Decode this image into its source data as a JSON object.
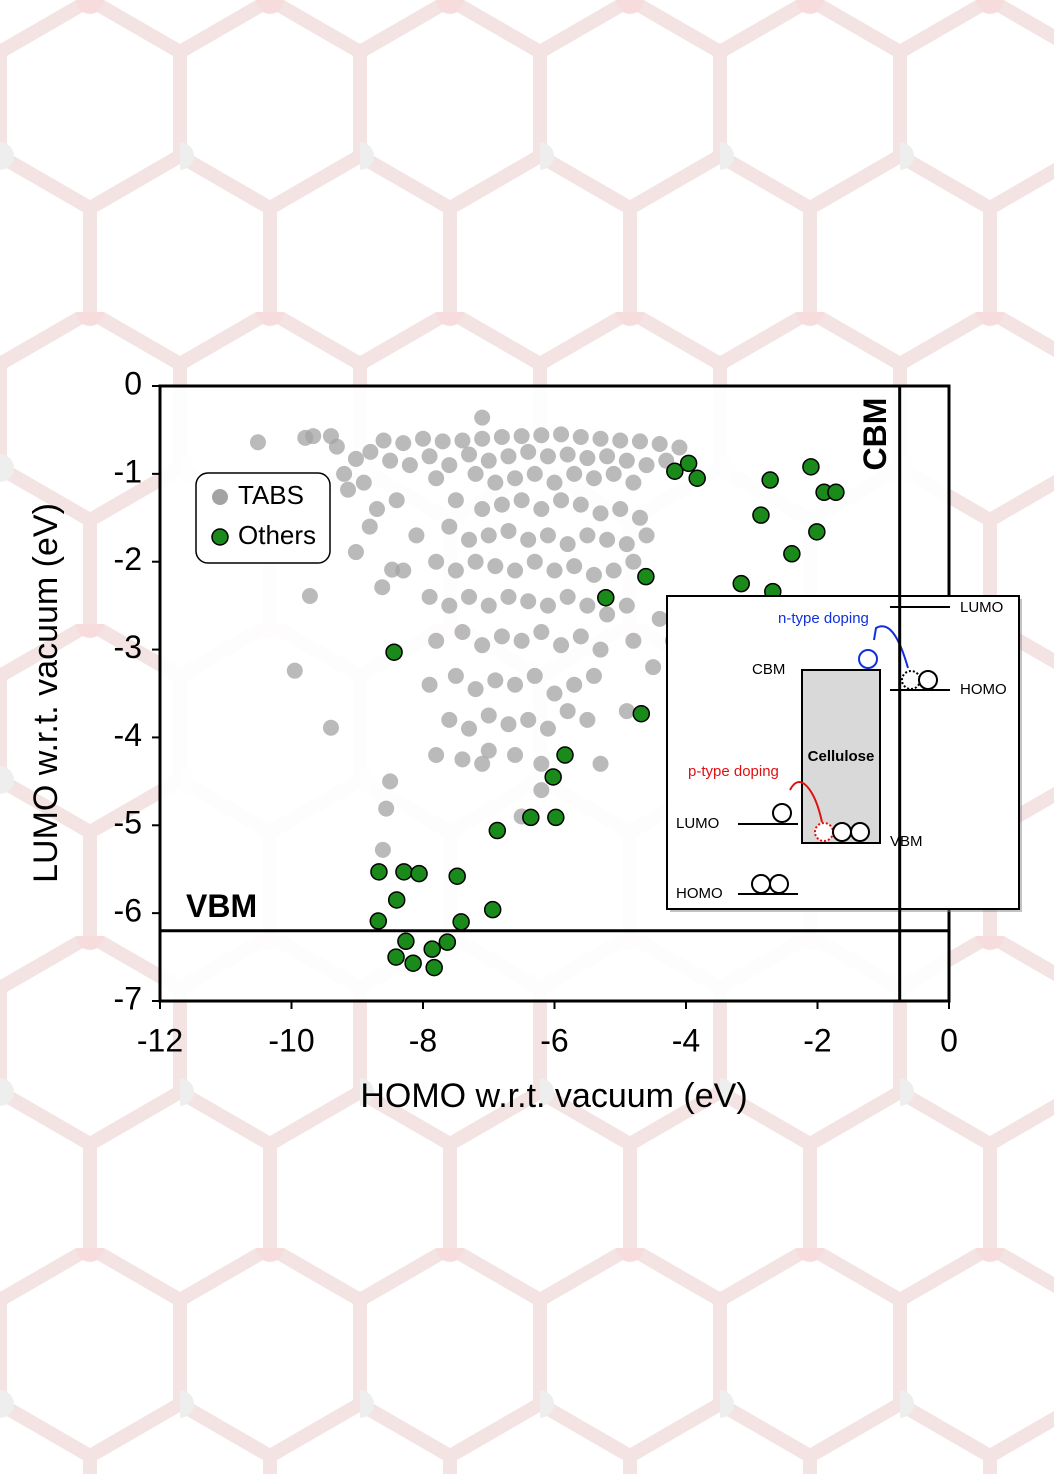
{
  "chart_data": {
    "type": "scatter",
    "x_label": "HOMO w.r.t. vacuum (eV)",
    "y_label": "LUMO w.r.t. vacuum (eV)",
    "xlim": [
      -12,
      0
    ],
    "ylim": [
      -7,
      0
    ],
    "xticks": [
      -12,
      -10,
      -8,
      -6,
      -4,
      -2,
      0
    ],
    "yticks": [
      0,
      -1,
      -2,
      -3,
      -4,
      -5,
      -6,
      -7
    ],
    "reference_lines": [
      {
        "label": "VBM",
        "axis": "y",
        "value": -6.2
      },
      {
        "label": "CBM",
        "axis": "x",
        "value": -0.75
      }
    ],
    "legend": "upper left",
    "series": [
      {
        "name": "TABS",
        "color": "#a3a3a3",
        "x": [
          -10.51,
          -9.79,
          -9.67,
          -9.4,
          -9.31,
          -9.02,
          -9.14,
          -9.02,
          -9.72,
          -9.95,
          -9.4,
          -8.5,
          -8.56,
          -8.61,
          -8.62,
          -8.47,
          -8.81,
          -7.1,
          -8.6,
          -8.3,
          -8.0,
          -7.7,
          -7.4,
          -7.1,
          -6.8,
          -6.5,
          -6.2,
          -5.9,
          -5.6,
          -5.3,
          -5.0,
          -4.7,
          -4.4,
          -4.1,
          -8.8,
          -8.5,
          -8.2,
          -7.9,
          -7.6,
          -7.3,
          -7.0,
          -6.7,
          -6.4,
          -6.1,
          -5.8,
          -5.5,
          -5.2,
          -4.9,
          -4.6,
          -4.3,
          -9.2,
          -8.9,
          -7.8,
          -7.2,
          -6.9,
          -6.6,
          -6.3,
          -6.0,
          -5.7,
          -5.4,
          -5.1,
          -4.8,
          -8.7,
          -8.4,
          -7.5,
          -7.1,
          -6.8,
          -6.5,
          -6.2,
          -5.9,
          -5.6,
          -5.3,
          -5.0,
          -4.7,
          -8.1,
          -7.6,
          -7.3,
          -7.0,
          -6.7,
          -6.4,
          -6.1,
          -5.8,
          -5.5,
          -5.2,
          -4.9,
          -4.6,
          -8.3,
          -7.8,
          -7.5,
          -7.2,
          -6.9,
          -6.6,
          -6.3,
          -6.0,
          -5.7,
          -5.4,
          -5.1,
          -4.8,
          -7.9,
          -7.6,
          -7.3,
          -7.0,
          -6.7,
          -6.4,
          -6.1,
          -5.8,
          -5.5,
          -5.2,
          -4.9,
          -4.4,
          -7.8,
          -7.4,
          -7.1,
          -6.8,
          -6.5,
          -6.2,
          -5.9,
          -5.6,
          -5.3,
          -4.8,
          -7.9,
          -7.5,
          -7.2,
          -6.9,
          -6.6,
          -6.3,
          -6.0,
          -5.7,
          -5.4,
          -4.9,
          -7.6,
          -7.3,
          -7.0,
          -6.7,
          -6.4,
          -6.1,
          -5.8,
          -5.5,
          -7.8,
          -7.4,
          -7.0,
          -6.6,
          -6.2,
          -5.3,
          -6.5,
          -6.2,
          -4.2,
          -4.5,
          -7.1
        ],
        "y": [
          -0.64,
          -0.59,
          -0.57,
          -0.57,
          -0.69,
          -0.83,
          -1.18,
          -1.89,
          -2.39,
          -3.24,
          -3.89,
          -4.5,
          -4.81,
          -5.28,
          -2.29,
          -2.09,
          -1.6,
          -0.36,
          -0.62,
          -0.65,
          -0.6,
          -0.63,
          -0.62,
          -0.6,
          -0.58,
          -0.57,
          -0.56,
          -0.55,
          -0.58,
          -0.6,
          -0.62,
          -0.63,
          -0.66,
          -0.7,
          -0.75,
          -0.85,
          -0.9,
          -0.8,
          -0.9,
          -0.78,
          -0.85,
          -0.8,
          -0.75,
          -0.8,
          -0.78,
          -0.82,
          -0.8,
          -0.85,
          -0.9,
          -0.85,
          -1.0,
          -1.1,
          -1.05,
          -1.0,
          -1.1,
          -1.05,
          -1.0,
          -1.1,
          -1.0,
          -1.05,
          -1.0,
          -1.1,
          -1.4,
          -1.3,
          -1.3,
          -1.4,
          -1.35,
          -1.3,
          -1.4,
          -1.3,
          -1.35,
          -1.45,
          -1.4,
          -1.5,
          -1.7,
          -1.6,
          -1.75,
          -1.7,
          -1.65,
          -1.75,
          -1.7,
          -1.8,
          -1.7,
          -1.75,
          -1.8,
          -1.7,
          -2.1,
          -2.0,
          -2.1,
          -2.0,
          -2.05,
          -2.1,
          -2.0,
          -2.1,
          -2.05,
          -2.15,
          -2.1,
          -2.0,
          -2.4,
          -2.5,
          -2.4,
          -2.5,
          -2.4,
          -2.45,
          -2.5,
          -2.4,
          -2.5,
          -2.6,
          -2.5,
          -2.65,
          -2.9,
          -2.8,
          -2.95,
          -2.85,
          -2.9,
          -2.8,
          -2.95,
          -2.85,
          -3.0,
          -2.9,
          -3.4,
          -3.3,
          -3.45,
          -3.35,
          -3.4,
          -3.3,
          -3.5,
          -3.4,
          -3.3,
          -3.7,
          -3.8,
          -3.9,
          -3.75,
          -3.85,
          -3.8,
          -3.9,
          -3.7,
          -3.8,
          -4.2,
          -4.25,
          -4.15,
          -4.2,
          -4.3,
          -4.3,
          -4.9,
          -4.6,
          -2.9,
          -3.2,
          -4.3
        ]
      },
      {
        "name": "Others",
        "color": "#1a8a1a",
        "x": [
          -4.17,
          -3.96,
          -3.83,
          -2.72,
          -2.1,
          -1.9,
          -1.72,
          -2.86,
          -2.01,
          -2.39,
          -3.16,
          -2.68,
          -4.61,
          -5.22,
          -4.68,
          -5.84,
          -6.02,
          -5.98,
          -6.36,
          -6.87,
          -6.94,
          -7.42,
          -7.48,
          -8.44,
          -8.67,
          -8.29,
          -8.06,
          -8.4,
          -8.68,
          -8.26,
          -7.63,
          -7.86,
          -8.41,
          -8.15,
          -7.83
        ],
        "y": [
          -0.97,
          -0.88,
          -1.05,
          -1.07,
          -0.92,
          -1.21,
          -1.21,
          -1.47,
          -1.66,
          -1.91,
          -2.25,
          -2.34,
          -2.17,
          -2.41,
          -3.73,
          -4.2,
          -4.45,
          -4.91,
          -4.91,
          -5.06,
          -5.96,
          -6.1,
          -5.58,
          -3.03,
          -5.53,
          -5.53,
          -5.55,
          -5.85,
          -6.09,
          -6.32,
          -6.33,
          -6.41,
          -6.5,
          -6.57,
          -6.62
        ]
      }
    ]
  },
  "inset": {
    "labels": [
      "LUMO",
      "n-type doping",
      "CBM",
      "HOMO",
      "Cellulose",
      "p-type doping",
      "LUMO",
      "VBM",
      "HOMO"
    ]
  }
}
